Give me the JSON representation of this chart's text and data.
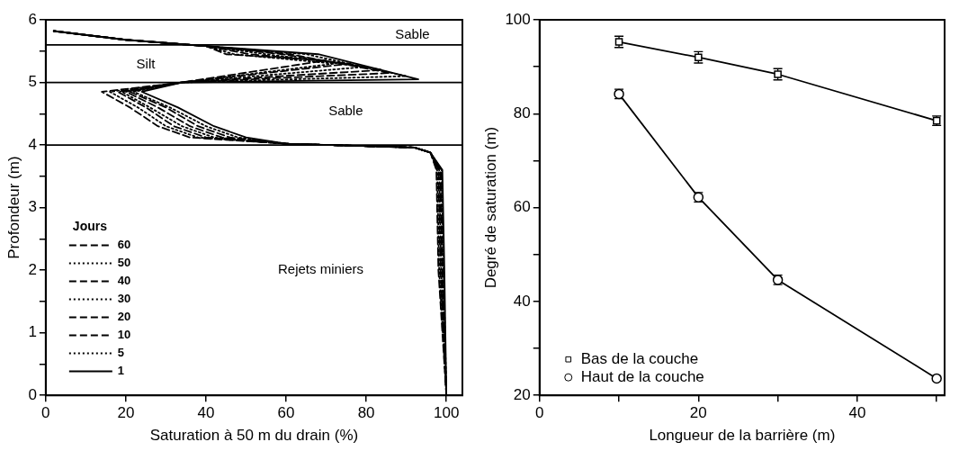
{
  "chart_data": [
    {
      "type": "line",
      "xlabel": "Saturation à 50 m du drain (%)",
      "ylabel": "Profondeur (m)",
      "legend_title": "Jours",
      "legend": "center left",
      "marker": "none",
      "xlim": [
        0,
        104
      ],
      "xticks": [
        0,
        20,
        40,
        60,
        80,
        100
      ],
      "ylim": [
        0,
        6
      ],
      "yticks": [
        0,
        {
          "value": 0.5,
          "label": null
        },
        1,
        {
          "value": 1.5,
          "label": null
        },
        2,
        {
          "value": 2.5,
          "label": null
        },
        3,
        {
          "value": 3.5,
          "label": null
        },
        4,
        {
          "value": 4.5,
          "label": null
        },
        5,
        {
          "value": 5.5,
          "label": null
        },
        6
      ],
      "ref_lines": [
        {
          "axis": "y",
          "value": 4
        },
        {
          "axis": "y",
          "value": 5
        },
        {
          "axis": "y",
          "value": 5.6
        }
      ],
      "annotations": [
        "Sable",
        "Silt",
        "Sable",
        "Rejets miniers"
      ],
      "series": [
        {
          "name": "60",
          "color": "#000000",
          "line_style": "dashed",
          "x": [
            100,
            98,
            97.5,
            96,
            92,
            60,
            36,
            28,
            21,
            14,
            34,
            70,
            45,
            40,
            20,
            2
          ],
          "values": [
            0,
            2,
            3.6,
            3.88,
            3.96,
            4.02,
            4.12,
            4.3,
            4.6,
            4.85,
            5.0,
            5.35,
            5.45,
            5.58,
            5.68,
            5.82
          ]
        },
        {
          "name": "50",
          "color": "#000000",
          "line_style": "dotted",
          "x": [
            100,
            98.2,
            97.7,
            96,
            92,
            60,
            38,
            30,
            23,
            16,
            34,
            72,
            47,
            40,
            20,
            2
          ],
          "values": [
            0,
            2,
            3.6,
            3.88,
            3.96,
            4.02,
            4.12,
            4.3,
            4.6,
            4.85,
            5.0,
            5.3,
            5.45,
            5.58,
            5.68,
            5.82
          ]
        },
        {
          "name": "40",
          "color": "#000000",
          "line_style": "dashed",
          "x": [
            100,
            98.5,
            98,
            96,
            92,
            60,
            40,
            32,
            25,
            18,
            34,
            76,
            51,
            40,
            20,
            2
          ],
          "values": [
            0,
            2,
            3.6,
            3.88,
            3.96,
            4.02,
            4.12,
            4.3,
            4.6,
            4.85,
            5.0,
            5.3,
            5.45,
            5.58,
            5.68,
            5.82
          ]
        },
        {
          "name": "30",
          "color": "#000000",
          "line_style": "dotted",
          "x": [
            100,
            98.7,
            98.2,
            96,
            92,
            60,
            42,
            34,
            26,
            19,
            34,
            80,
            55,
            40,
            20,
            2
          ],
          "values": [
            0,
            2,
            3.6,
            3.88,
            3.96,
            4.02,
            4.12,
            4.3,
            4.6,
            4.85,
            5.0,
            5.25,
            5.45,
            5.58,
            5.68,
            5.82
          ]
        },
        {
          "name": "20",
          "color": "#000000",
          "line_style": "dashed",
          "x": [
            100,
            98.9,
            98.4,
            96,
            92,
            60,
            44,
            36,
            28,
            20,
            34,
            84,
            59,
            40,
            20,
            2
          ],
          "values": [
            0,
            2,
            3.6,
            3.88,
            3.96,
            4.02,
            4.12,
            4.3,
            4.6,
            4.85,
            5.0,
            5.2,
            5.45,
            5.58,
            5.68,
            5.82
          ]
        },
        {
          "name": "10",
          "color": "#000000",
          "line_style": "dashed",
          "x": [
            100,
            99.1,
            98.6,
            96,
            92,
            60,
            46,
            38,
            30,
            21,
            34,
            86,
            61,
            40,
            20,
            2
          ],
          "values": [
            0,
            2,
            3.6,
            3.88,
            3.96,
            4.02,
            4.12,
            4.3,
            4.6,
            4.85,
            5.0,
            5.15,
            5.45,
            5.58,
            5.68,
            5.82
          ]
        },
        {
          "name": "5",
          "color": "#000000",
          "line_style": "dotted",
          "x": [
            100,
            99.3,
            98.8,
            96,
            92,
            60,
            48,
            40,
            31,
            22,
            34,
            90,
            65,
            40,
            20,
            2
          ],
          "values": [
            0,
            2,
            3.6,
            3.88,
            3.96,
            4.02,
            4.12,
            4.3,
            4.6,
            4.85,
            5.0,
            5.1,
            5.45,
            5.58,
            5.68,
            5.82
          ]
        },
        {
          "name": "1",
          "color": "#000000",
          "line_style": "solid",
          "x": [
            100,
            99.5,
            99,
            96,
            92,
            60,
            50,
            42,
            33,
            24,
            34,
            93,
            68,
            40,
            20,
            2
          ],
          "values": [
            0,
            2,
            3.6,
            3.88,
            3.96,
            4.02,
            4.12,
            4.3,
            4.6,
            4.85,
            5.0,
            5.05,
            5.45,
            5.58,
            5.68,
            5.82
          ]
        }
      ]
    },
    {
      "type": "line",
      "xlabel": "Longueur de la barrière (m)",
      "ylabel": "Degré de saturation (m)",
      "legend": "bottom left",
      "xlim": [
        0,
        51
      ],
      "xticks": [
        0,
        {
          "value": 10,
          "label": null
        },
        20,
        {
          "value": 30,
          "label": null
        },
        40,
        {
          "value": 50,
          "label": null
        }
      ],
      "ylim": [
        20,
        100
      ],
      "yticks": [
        20,
        {
          "value": 30,
          "label": null
        },
        40,
        {
          "value": 50,
          "label": null
        },
        60,
        {
          "value": 70,
          "label": null
        },
        80,
        {
          "value": 90,
          "label": null
        },
        100
      ],
      "series": [
        {
          "name": "Bas de la couche",
          "color": "#000000",
          "marker": "square",
          "x": [
            10,
            20,
            30,
            50
          ],
          "values": [
            95.3,
            92,
            88.4,
            78.5
          ],
          "errors": [
            1.2,
            1.2,
            1.2,
            1
          ]
        },
        {
          "name": "Haut de la couche",
          "color": "#000000",
          "marker": "circle",
          "x": [
            10,
            20,
            30,
            50
          ],
          "values": [
            84.2,
            62.2,
            44.6,
            23.6
          ],
          "errors": [
            1,
            1,
            1,
            null
          ]
        }
      ]
    }
  ]
}
